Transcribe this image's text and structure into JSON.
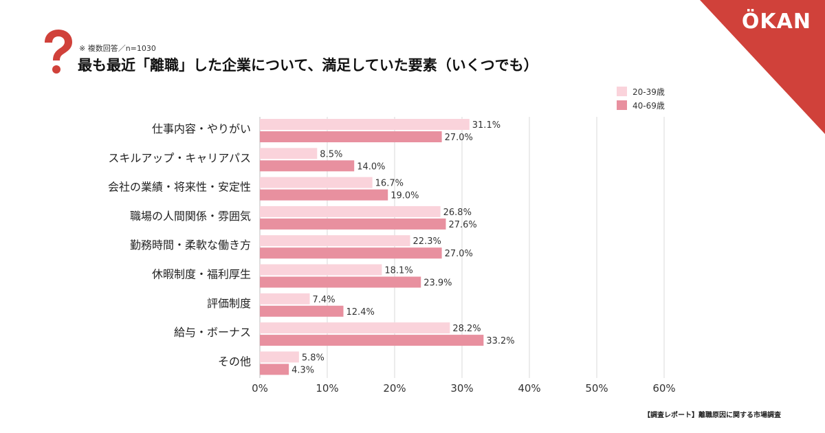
{
  "brand": {
    "logo": "ÖKAN"
  },
  "header": {
    "note": "※ 複数回答／n=1030",
    "title": "最も最近「離職」した企業について、満足していた要素（いくつでも）"
  },
  "colors": {
    "accent": "#d0413a",
    "series1": "#fad3db",
    "series2": "#e8909f",
    "grid": "#d8d8d8"
  },
  "footer": {
    "source": "【調査レポート】離職原因に関する市場調査"
  },
  "chart_data": {
    "type": "bar",
    "orientation": "horizontal",
    "categories": [
      "仕事内容・やりがい",
      "スキルアップ・キャリアパス",
      "会社の業績・将来性・安定性",
      "職場の人間関係・雰囲気",
      "勤務時間・柔軟な働き方",
      "休暇制度・福利厚生",
      "評価制度",
      "給与・ボーナス",
      "その他"
    ],
    "series": [
      {
        "name": "20-39歳",
        "values": [
          31.1,
          8.5,
          16.7,
          26.8,
          22.3,
          18.1,
          7.4,
          28.2,
          5.8
        ]
      },
      {
        "name": "40-69歳",
        "values": [
          27.0,
          14.0,
          19.0,
          27.6,
          27.0,
          23.9,
          12.4,
          33.2,
          4.3
        ]
      }
    ],
    "xlim": [
      0,
      60
    ],
    "xticks": [
      "0%",
      "10%",
      "20%",
      "30%",
      "40%",
      "50%",
      "60%"
    ],
    "value_suffix": "%",
    "legend": "top-right",
    "grid": true
  }
}
